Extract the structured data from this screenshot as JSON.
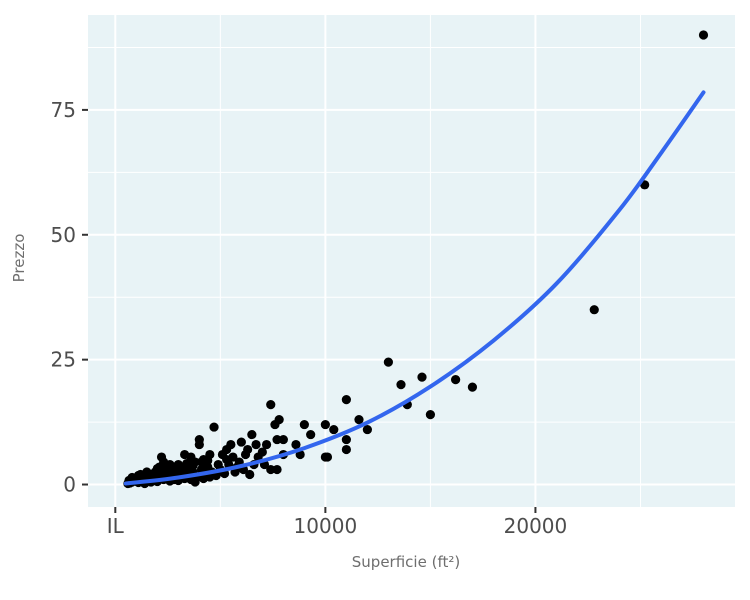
{
  "chart_data": {
    "type": "scatter",
    "title": "",
    "xlabel": "Superficie (ft²)",
    "ylabel": "Prezzo",
    "xlim": [
      -1300,
      29500
    ],
    "ylim": [
      -4.5,
      94
    ],
    "x_ticks": [
      {
        "value": 0,
        "label": "IL"
      },
      {
        "value": 10000,
        "label": "10000"
      },
      {
        "value": 20000,
        "label": "20000"
      }
    ],
    "x_minor_ticks": [
      5000,
      15000,
      25000
    ],
    "y_ticks": [
      {
        "value": 0,
        "label": "0"
      },
      {
        "value": 25,
        "label": "25"
      },
      {
        "value": 50,
        "label": "50"
      },
      {
        "value": 75,
        "label": "75"
      }
    ],
    "y_minor_ticks": [
      12.5,
      37.5,
      62.5,
      87.5
    ],
    "grid": true,
    "legend": "none",
    "colors": {
      "panel": "#e8f3f6",
      "gridline": "#ffffff",
      "points": "#000000",
      "trend": "#3366ee",
      "tick_text": "#4d4d4d",
      "axis_title": "#6e6e6e"
    },
    "trend": {
      "type": "smooth",
      "x": [
        500,
        3000,
        6000,
        9000,
        12000,
        15000,
        18000,
        21000,
        24000,
        26000,
        28000
      ],
      "y": [
        0.2,
        1.4,
        3.7,
        7.3,
        12.4,
        19.6,
        28.8,
        40.2,
        55.0,
        66.5,
        78.5
      ]
    },
    "points": [
      {
        "x": 28000,
        "y": 90
      },
      {
        "x": 25200,
        "y": 60
      },
      {
        "x": 22800,
        "y": 35
      },
      {
        "x": 13000,
        "y": 24.5
      },
      {
        "x": 14600,
        "y": 21.5
      },
      {
        "x": 16200,
        "y": 21
      },
      {
        "x": 17000,
        "y": 19.5
      },
      {
        "x": 13600,
        "y": 20
      },
      {
        "x": 13900,
        "y": 16
      },
      {
        "x": 15000,
        "y": 14
      },
      {
        "x": 11000,
        "y": 17
      },
      {
        "x": 11600,
        "y": 13
      },
      {
        "x": 12000,
        "y": 11
      },
      {
        "x": 10400,
        "y": 11
      },
      {
        "x": 10000,
        "y": 12
      },
      {
        "x": 11000,
        "y": 9
      },
      {
        "x": 11000,
        "y": 7
      },
      {
        "x": 9000,
        "y": 12
      },
      {
        "x": 9300,
        "y": 10
      },
      {
        "x": 8600,
        "y": 8
      },
      {
        "x": 8800,
        "y": 6
      },
      {
        "x": 10000,
        "y": 5.5
      },
      {
        "x": 10100,
        "y": 5.5
      },
      {
        "x": 7400,
        "y": 16
      },
      {
        "x": 7600,
        "y": 12
      },
      {
        "x": 7800,
        "y": 13
      },
      {
        "x": 7700,
        "y": 9
      },
      {
        "x": 8000,
        "y": 9
      },
      {
        "x": 8000,
        "y": 6
      },
      {
        "x": 7200,
        "y": 8
      },
      {
        "x": 7000,
        "y": 6.5
      },
      {
        "x": 6500,
        "y": 10
      },
      {
        "x": 6700,
        "y": 8
      },
      {
        "x": 6300,
        "y": 7
      },
      {
        "x": 6000,
        "y": 8.5
      },
      {
        "x": 6200,
        "y": 6
      },
      {
        "x": 6600,
        "y": 4
      },
      {
        "x": 7400,
        "y": 3
      },
      {
        "x": 7700,
        "y": 3
      },
      {
        "x": 6400,
        "y": 2
      },
      {
        "x": 5800,
        "y": 3.5
      },
      {
        "x": 5500,
        "y": 8
      },
      {
        "x": 5600,
        "y": 5.5
      },
      {
        "x": 4700,
        "y": 11.5
      },
      {
        "x": 5100,
        "y": 6
      },
      {
        "x": 5300,
        "y": 7
      },
      {
        "x": 4900,
        "y": 4
      },
      {
        "x": 4500,
        "y": 6
      },
      {
        "x": 4200,
        "y": 5
      },
      {
        "x": 4000,
        "y": 9
      },
      {
        "x": 4000,
        "y": 8
      },
      {
        "x": 3800,
        "y": 4.5
      },
      {
        "x": 3600,
        "y": 5.5
      },
      {
        "x": 3300,
        "y": 6
      },
      {
        "x": 3000,
        "y": 4
      },
      {
        "x": 2800,
        "y": 3
      },
      {
        "x": 2600,
        "y": 4
      },
      {
        "x": 2200,
        "y": 5.5
      },
      {
        "x": 2100,
        "y": 3.5
      },
      {
        "x": 1900,
        "y": 2.5
      },
      {
        "x": 1700,
        "y": 2
      },
      {
        "x": 1500,
        "y": 2.5
      },
      {
        "x": 1200,
        "y": 1.5
      },
      {
        "x": 1000,
        "y": 1
      },
      {
        "x": 900,
        "y": 1.2
      },
      {
        "x": 800,
        "y": 0.5
      },
      {
        "x": 700,
        "y": 0.3
      },
      {
        "x": 600,
        "y": 0.2
      },
      {
        "x": 1100,
        "y": 0.4
      },
      {
        "x": 1300,
        "y": 0.7
      },
      {
        "x": 1400,
        "y": 0.2
      },
      {
        "x": 1600,
        "y": 1.2
      },
      {
        "x": 1800,
        "y": 0.8
      },
      {
        "x": 2000,
        "y": 1.5
      },
      {
        "x": 2300,
        "y": 1
      },
      {
        "x": 2400,
        "y": 2
      },
      {
        "x": 2500,
        "y": 1.2
      },
      {
        "x": 2700,
        "y": 1.8
      },
      {
        "x": 2900,
        "y": 2.5
      },
      {
        "x": 3100,
        "y": 1.5
      },
      {
        "x": 3200,
        "y": 3
      },
      {
        "x": 3400,
        "y": 2
      },
      {
        "x": 3500,
        "y": 3.5
      },
      {
        "x": 3700,
        "y": 2.5
      },
      {
        "x": 3900,
        "y": 1.5
      },
      {
        "x": 4100,
        "y": 3
      },
      {
        "x": 4300,
        "y": 2
      },
      {
        "x": 4400,
        "y": 3.5
      },
      {
        "x": 4600,
        "y": 2.5
      },
      {
        "x": 4800,
        "y": 1.8
      },
      {
        "x": 5000,
        "y": 3
      },
      {
        "x": 5200,
        "y": 2.2
      },
      {
        "x": 5400,
        "y": 4
      },
      {
        "x": 5700,
        "y": 2.5
      },
      {
        "x": 5900,
        "y": 4.5
      },
      {
        "x": 6100,
        "y": 3
      },
      {
        "x": 1200,
        "y": 2
      },
      {
        "x": 1500,
        "y": 1
      },
      {
        "x": 1700,
        "y": 0.5
      },
      {
        "x": 2000,
        "y": 0.6
      },
      {
        "x": 2200,
        "y": 2.2
      },
      {
        "x": 2600,
        "y": 0.7
      },
      {
        "x": 2800,
        "y": 1
      },
      {
        "x": 3000,
        "y": 0.8
      },
      {
        "x": 3300,
        "y": 1.2
      },
      {
        "x": 3600,
        "y": 1
      },
      {
        "x": 3800,
        "y": 0.5
      },
      {
        "x": 4200,
        "y": 1.2
      },
      {
        "x": 4500,
        "y": 1.5
      },
      {
        "x": 900,
        "y": 0.7
      },
      {
        "x": 1100,
        "y": 1.8
      },
      {
        "x": 1900,
        "y": 1.2
      },
      {
        "x": 2400,
        "y": 3
      },
      {
        "x": 2700,
        "y": 2.8
      },
      {
        "x": 3100,
        "y": 2.2
      },
      {
        "x": 3400,
        "y": 4.2
      },
      {
        "x": 3700,
        "y": 3.8
      },
      {
        "x": 4100,
        "y": 4.5
      },
      {
        "x": 4400,
        "y": 4.8
      },
      {
        "x": 5300,
        "y": 5
      },
      {
        "x": 6800,
        "y": 5.5
      },
      {
        "x": 7100,
        "y": 4
      },
      {
        "x": 2000,
        "y": 3.2
      },
      {
        "x": 2300,
        "y": 4.5
      },
      {
        "x": 2900,
        "y": 3.6
      },
      {
        "x": 1400,
        "y": 1.8
      },
      {
        "x": 800,
        "y": 1.4
      },
      {
        "x": 650,
        "y": 0.8
      }
    ]
  }
}
